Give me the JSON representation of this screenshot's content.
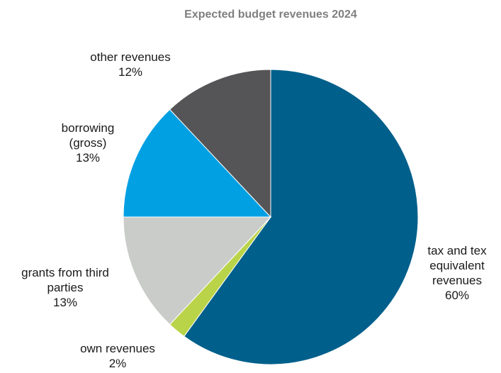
{
  "chart_data": {
    "type": "pie",
    "title": "Expected budget revenues 2024",
    "slices": [
      {
        "label_lines": [
          "tax and tex",
          "equivalent",
          "revenues"
        ],
        "value": 60,
        "display": "60%",
        "color": "#005f8b"
      },
      {
        "label_lines": [
          "own revenues"
        ],
        "value": 2,
        "display": "2%",
        "color": "#b9d449"
      },
      {
        "label_lines": [
          "grants from third",
          "parties"
        ],
        "value": 13,
        "display": "13%",
        "color": "#c9ccc8"
      },
      {
        "label_lines": [
          "borrowing",
          "(gross)"
        ],
        "value": 13,
        "display": "13%",
        "color": "#00a0e3"
      },
      {
        "label_lines": [
          "other revenues"
        ],
        "value": 12,
        "display": "12%",
        "color": "#555557"
      }
    ],
    "start_angle_deg": 0,
    "direction": "clockwise",
    "legend": "none"
  }
}
